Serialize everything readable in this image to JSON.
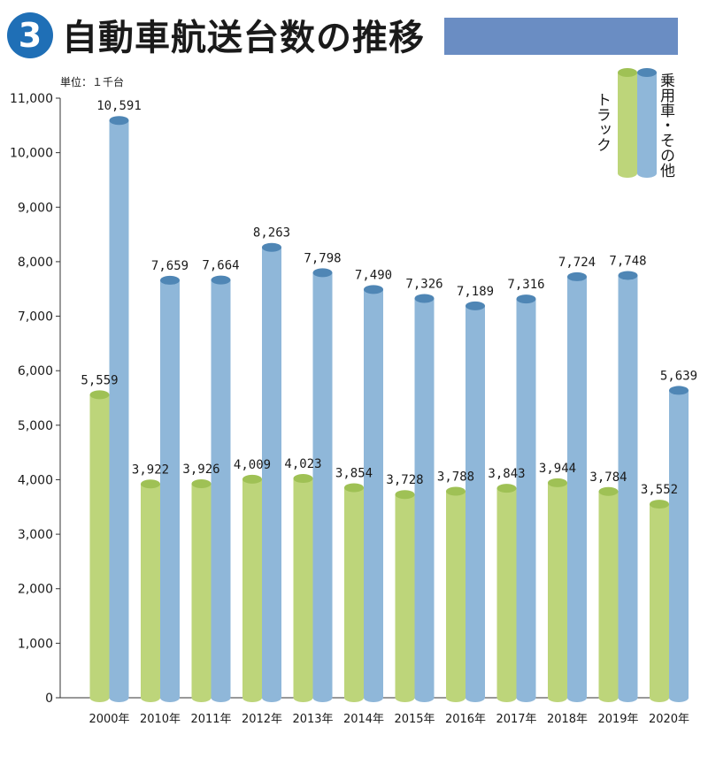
{
  "header": {
    "badge": "3",
    "title": "自動車航送台数の推移"
  },
  "colors": {
    "truck": "#bdd57a",
    "truck_dark": "#9fc155",
    "car": "#8fb7d9",
    "car_dark": "#4f86b5",
    "title_bar": "#6a8dc3",
    "badge": "#1f6fb6"
  },
  "chart_data": {
    "type": "bar",
    "unit_label": "単位：１千台",
    "categories": [
      "2000年",
      "2010年",
      "2011年",
      "2012年",
      "2013年",
      "2014年",
      "2015年",
      "2016年",
      "2017年",
      "2018年",
      "2019年",
      "2020年"
    ],
    "series": [
      {
        "name": "トラック",
        "values": [
          5559,
          3922,
          3926,
          4009,
          4023,
          3854,
          3728,
          3788,
          3843,
          3944,
          3784,
          3552
        ]
      },
      {
        "name": "乗用車・その他",
        "values": [
          10591,
          7659,
          7664,
          8263,
          7798,
          7490,
          7326,
          7189,
          7316,
          7724,
          7748,
          5639
        ]
      }
    ],
    "value_labels": {
      "truck": [
        "5,559",
        "3,922",
        "3,926",
        "4,009",
        "4,023",
        "3,854",
        "3,728",
        "3,788",
        "3,843",
        "3,944",
        "3,784",
        "3,552"
      ],
      "car": [
        "10,591",
        "7,659",
        "7,664",
        "8,263",
        "7,798",
        "7,490",
        "7,326",
        "7,189",
        "7,316",
        "7,724",
        "7,748",
        "5,639"
      ]
    },
    "yticks": [
      "0",
      "1,000",
      "2,000",
      "3,000",
      "4,000",
      "5,000",
      "6,000",
      "7,000",
      "8,000",
      "9,000",
      "10,000",
      "11,000"
    ],
    "ylim": [
      0,
      11000
    ],
    "legend_position": "top-right",
    "grid": false
  }
}
